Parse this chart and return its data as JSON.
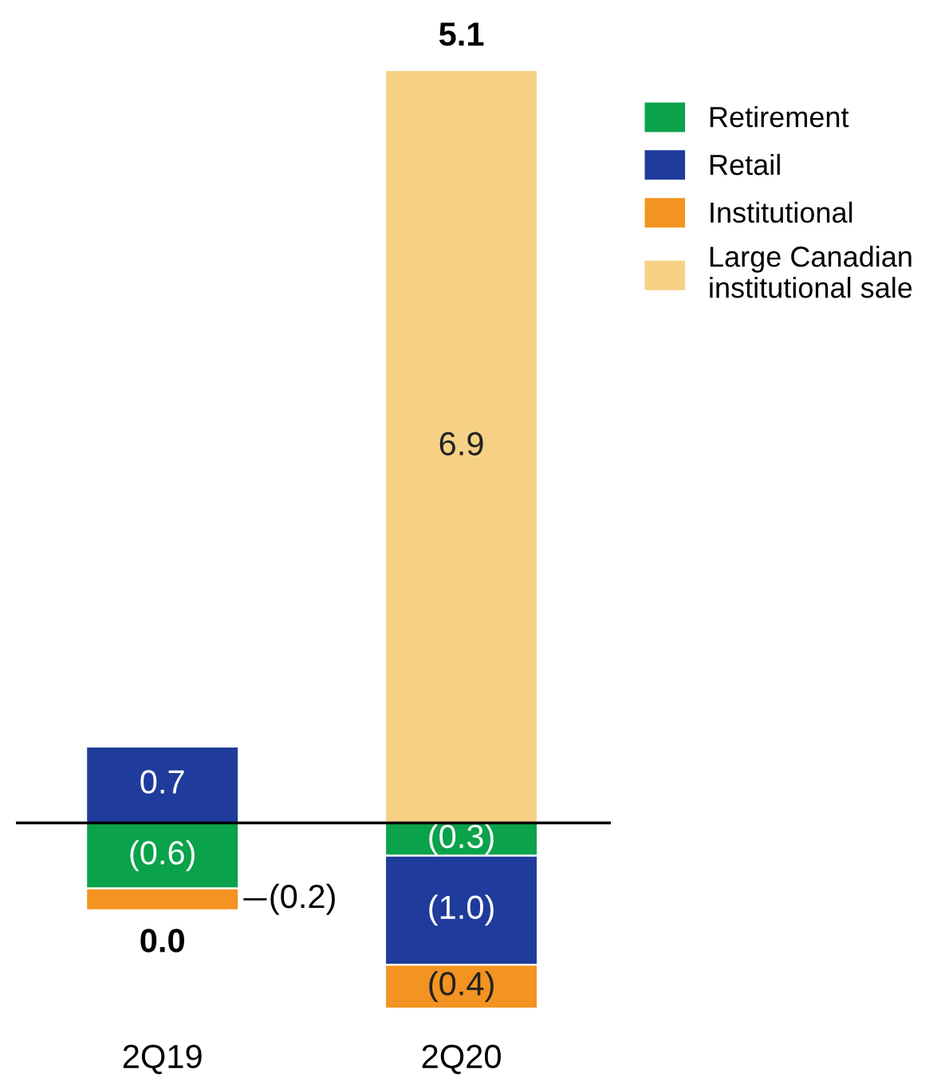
{
  "chart_data": {
    "type": "bar",
    "stacked": true,
    "categories": [
      "2Q19",
      "2Q20"
    ],
    "series": [
      {
        "name": "Retirement",
        "color": "#0aa24b",
        "values": [
          -0.6,
          -0.3
        ],
        "value_labels": [
          "(0.6)",
          "(0.3)"
        ]
      },
      {
        "name": "Retail",
        "color": "#1f3b9b",
        "values": [
          0.7,
          -1.0
        ],
        "value_labels": [
          "0.7",
          "(1.0)"
        ]
      },
      {
        "name": "Institutional",
        "color": "#f39321",
        "values": [
          -0.2,
          -0.4
        ],
        "value_labels": [
          "(0.2)",
          "(0.4)"
        ]
      },
      {
        "name": "Large Canadian\ninstitutional sale",
        "color": "#f6d185",
        "values": [
          null,
          6.9
        ],
        "value_labels": [
          null,
          "6.9"
        ]
      }
    ],
    "totals": [
      "0.0",
      "5.1"
    ],
    "ylim": [
      -1.7,
      6.9
    ],
    "ref_lines": [
      {
        "axis": "y",
        "value": 0,
        "color": "#000000"
      }
    ],
    "legend": "top right",
    "grid": false
  }
}
